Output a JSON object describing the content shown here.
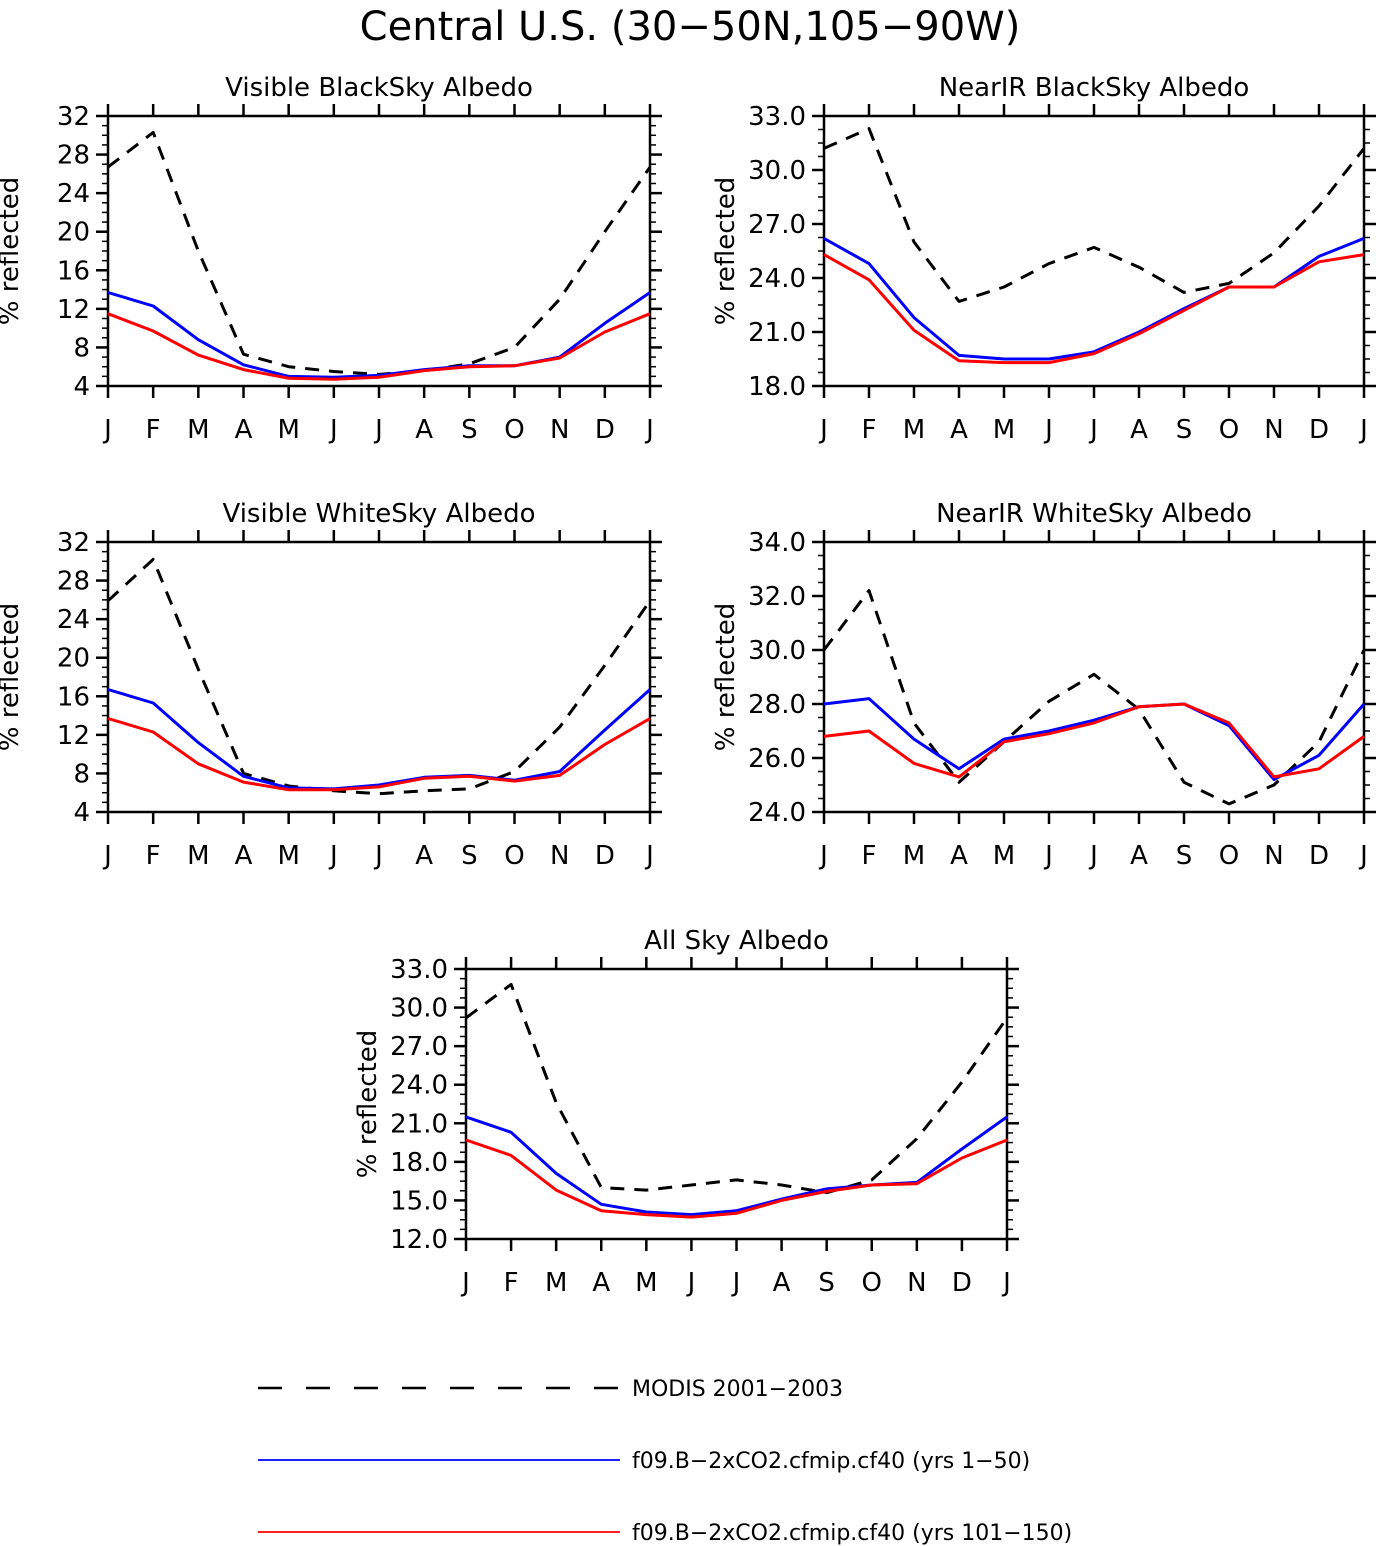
{
  "title": "Central U.S. (30−50N,105−90W)",
  "colors": {
    "modis": "#000000",
    "run1": "#0000ff",
    "run2": "#ff0000"
  },
  "legend": [
    {
      "label": "MODIS 2001−2003",
      "color": "#000000",
      "style": "dashed"
    },
    {
      "label": "f09.B−2xCO2.cfmip.cf40 (yrs 1−50)",
      "color": "#0000ff",
      "style": "solid"
    },
    {
      "label": "f09.B−2xCO2.cfmip.cf40 (yrs 101−150)",
      "color": "#ff0000",
      "style": "solid"
    }
  ],
  "chart_data": [
    {
      "type": "line",
      "title": "Visible BlackSky Albedo",
      "ylabel": "% reflected",
      "categories": [
        "J",
        "F",
        "M",
        "A",
        "M",
        "J",
        "J",
        "A",
        "S",
        "O",
        "N",
        "D",
        "J"
      ],
      "ylim": [
        4,
        32
      ],
      "yticks": [
        "4",
        "8",
        "12",
        "16",
        "20",
        "24",
        "28",
        "32"
      ],
      "series": [
        {
          "name": "MODIS 2001−2003",
          "values": [
            26.7,
            30.3,
            18.0,
            7.3,
            6.0,
            5.5,
            5.2,
            5.6,
            6.3,
            8.0,
            13.0,
            20.0,
            26.7
          ]
        },
        {
          "name": "f09.B−2xCO2.cfmip.cf40 (yrs 1−50)",
          "values": [
            13.7,
            12.3,
            8.8,
            6.2,
            5.0,
            4.9,
            5.1,
            5.7,
            6.1,
            6.1,
            7.0,
            10.5,
            13.7
          ]
        },
        {
          "name": "f09.B−2xCO2.cfmip.cf40 (yrs 101−150)",
          "values": [
            11.5,
            9.7,
            7.2,
            5.7,
            4.8,
            4.7,
            4.9,
            5.6,
            6.0,
            6.1,
            6.9,
            9.6,
            11.5
          ]
        }
      ]
    },
    {
      "type": "line",
      "title": "NearIR BlackSky Albedo",
      "ylabel": "% reflected",
      "categories": [
        "J",
        "F",
        "M",
        "A",
        "M",
        "J",
        "J",
        "A",
        "S",
        "O",
        "N",
        "D",
        "J"
      ],
      "ylim": [
        18,
        33
      ],
      "yticks": [
        "18.0",
        "21.0",
        "24.0",
        "27.0",
        "30.0",
        "33.0"
      ],
      "series": [
        {
          "name": "MODIS 2001−2003",
          "values": [
            31.2,
            32.3,
            26.0,
            22.7,
            23.5,
            24.8,
            25.7,
            24.6,
            23.2,
            23.7,
            25.4,
            28.0,
            31.2
          ]
        },
        {
          "name": "f09.B−2xCO2.cfmip.cf40 (yrs 1−50)",
          "values": [
            26.2,
            24.8,
            21.8,
            19.7,
            19.5,
            19.5,
            19.9,
            21.0,
            22.3,
            23.5,
            23.5,
            25.2,
            26.2
          ]
        },
        {
          "name": "f09.B−2xCO2.cfmip.cf40 (yrs 101−150)",
          "values": [
            25.3,
            23.9,
            21.1,
            19.4,
            19.3,
            19.3,
            19.8,
            20.9,
            22.2,
            23.5,
            23.5,
            24.9,
            25.3
          ]
        }
      ]
    },
    {
      "type": "line",
      "title": "Visible WhiteSky Albedo",
      "ylabel": "% reflected",
      "categories": [
        "J",
        "F",
        "M",
        "A",
        "M",
        "J",
        "J",
        "A",
        "S",
        "O",
        "N",
        "D",
        "J"
      ],
      "ylim": [
        4,
        32
      ],
      "yticks": [
        "4",
        "8",
        "12",
        "16",
        "20",
        "24",
        "28",
        "32"
      ],
      "series": [
        {
          "name": "MODIS 2001−2003",
          "values": [
            25.9,
            30.2,
            18.8,
            8.0,
            6.7,
            6.2,
            5.9,
            6.2,
            6.4,
            8.2,
            12.8,
            19.2,
            25.9
          ]
        },
        {
          "name": "f09.B−2xCO2.cfmip.cf40 (yrs 1−50)",
          "values": [
            16.7,
            15.3,
            11.2,
            7.7,
            6.5,
            6.4,
            6.8,
            7.6,
            7.8,
            7.3,
            8.2,
            12.5,
            16.7
          ]
        },
        {
          "name": "f09.B−2xCO2.cfmip.cf40 (yrs 101−150)",
          "values": [
            13.7,
            12.3,
            9.0,
            7.1,
            6.3,
            6.3,
            6.6,
            7.5,
            7.7,
            7.2,
            7.8,
            11.0,
            13.7
          ]
        }
      ]
    },
    {
      "type": "line",
      "title": "NearIR WhiteSky Albedo",
      "ylabel": "% reflected",
      "categories": [
        "J",
        "F",
        "M",
        "A",
        "M",
        "J",
        "J",
        "A",
        "S",
        "O",
        "N",
        "D",
        "J"
      ],
      "ylim": [
        24,
        34
      ],
      "yticks": [
        "24.0",
        "26.0",
        "28.0",
        "30.0",
        "32.0",
        "34.0"
      ],
      "series": [
        {
          "name": "MODIS 2001−2003",
          "values": [
            30.0,
            32.2,
            27.3,
            25.1,
            26.6,
            28.1,
            29.1,
            27.8,
            25.1,
            24.3,
            25.0,
            26.6,
            30.0
          ]
        },
        {
          "name": "f09.B−2xCO2.cfmip.cf40 (yrs 1−50)",
          "values": [
            28.0,
            28.2,
            26.7,
            25.6,
            26.7,
            27.0,
            27.4,
            27.9,
            28.0,
            27.2,
            25.2,
            26.1,
            28.0
          ]
        },
        {
          "name": "f09.B−2xCO2.cfmip.cf40 (yrs 101−150)",
          "values": [
            26.8,
            27.0,
            25.8,
            25.3,
            26.6,
            26.9,
            27.3,
            27.9,
            28.0,
            27.3,
            25.3,
            25.6,
            26.8
          ]
        }
      ]
    },
    {
      "type": "line",
      "title": "All Sky Albedo",
      "ylabel": "% reflected",
      "categories": [
        "J",
        "F",
        "M",
        "A",
        "M",
        "J",
        "J",
        "A",
        "S",
        "O",
        "N",
        "D",
        "J"
      ],
      "ylim": [
        12,
        33
      ],
      "yticks": [
        "12.0",
        "15.0",
        "18.0",
        "21.0",
        "24.0",
        "27.0",
        "30.0",
        "33.0"
      ],
      "series": [
        {
          "name": "MODIS 2001−2003",
          "values": [
            29.2,
            31.8,
            22.6,
            16.0,
            15.8,
            16.2,
            16.6,
            16.2,
            15.6,
            16.6,
            19.8,
            24.2,
            29.2
          ]
        },
        {
          "name": "f09.B−2xCO2.cfmip.cf40 (yrs 1−50)",
          "values": [
            21.5,
            20.3,
            17.1,
            14.7,
            14.1,
            13.9,
            14.2,
            15.1,
            15.9,
            16.2,
            16.4,
            19.0,
            21.5
          ]
        },
        {
          "name": "f09.B−2xCO2.cfmip.cf40 (yrs 101−150)",
          "values": [
            19.7,
            18.5,
            15.8,
            14.2,
            13.9,
            13.7,
            14.0,
            15.0,
            15.7,
            16.2,
            16.3,
            18.3,
            19.7
          ]
        }
      ]
    }
  ]
}
